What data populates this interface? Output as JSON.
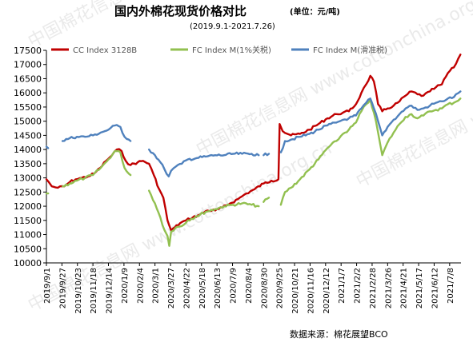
{
  "chart_data": {
    "type": "line",
    "title": "国内外棉花现货价格对比",
    "unit": "(单位：元/吨)",
    "subtitle": "(2019.9.1-2021.7.26)",
    "source": "数据来源：棉花展望BCO",
    "watermark": "中国棉花信息网 www.cottonchina.org.cn",
    "ylim": [
      10000,
      17500
    ],
    "yticks": [
      10000,
      10500,
      11000,
      11500,
      12000,
      12500,
      13000,
      13500,
      14000,
      14500,
      15000,
      15500,
      16000,
      16500,
      17000,
      17500
    ],
    "x_ticks": [
      "2019/9/1",
      "2019/9/27",
      "2019/10/23",
      "2019/11/18",
      "2019/12/14",
      "2020/1/9",
      "2020/2/4",
      "2020/3/1",
      "2020/3/27",
      "2020/4/22",
      "2020/5/18",
      "2020/6/13",
      "2020/7/9",
      "2020/8/4",
      "2020/8/30",
      "2020/9/25",
      "2020/10/21",
      "2020/11/16",
      "2020/12/12",
      "2021/1/7",
      "2021/2/2",
      "2021/2/28",
      "2021/3/26",
      "2021/4/21",
      "2021/5/17",
      "2021/6/12",
      "2021/7/8"
    ],
    "grid": false,
    "legend_position": "top",
    "series": [
      {
        "name": "CC Index 3128B",
        "color": "#c00000",
        "points": [
          [
            "2019/9/1",
            12950
          ],
          [
            "2019/9/5",
            12850
          ],
          [
            "2019/9/10",
            12700
          ],
          [
            "2019/9/20",
            12650
          ],
          [
            "2019/10/1",
            12700
          ],
          [
            "2019/10/10",
            12850
          ],
          [
            "2019/10/20",
            12950
          ],
          [
            "2019/10/30",
            13000
          ],
          [
            "2019/11/10",
            13050
          ],
          [
            "2019/11/20",
            13150
          ],
          [
            "2019/11/30",
            13350
          ],
          [
            "2019/12/10",
            13600
          ],
          [
            "2019/12/20",
            13800
          ],
          [
            "2019/12/28",
            14000
          ],
          [
            "2020/1/5",
            13950
          ],
          [
            "2020/1/12",
            13600
          ],
          [
            "2020/1/20",
            13450
          ],
          [
            "2020/2/1",
            13550
          ],
          [
            "2020/2/10",
            13600
          ],
          [
            "2020/2/20",
            13500
          ],
          [
            "2020/2/28",
            13100
          ],
          [
            "2020/3/8",
            12600
          ],
          [
            "2020/3/15",
            12300
          ],
          [
            "2020/3/22",
            11500
          ],
          [
            "2020/3/28",
            11150
          ],
          [
            "2020/4/3",
            11250
          ],
          [
            "2020/4/12",
            11400
          ],
          [
            "2020/4/22",
            11500
          ],
          [
            "2020/5/3",
            11600
          ],
          [
            "2020/5/15",
            11700
          ],
          [
            "2020/5/28",
            11850
          ],
          [
            "2020/6/10",
            11850
          ],
          [
            "2020/6/22",
            11950
          ],
          [
            "2020/7/5",
            12100
          ],
          [
            "2020/7/18",
            12250
          ],
          [
            "2020/8/1",
            12450
          ],
          [
            "2020/8/15",
            12600
          ],
          [
            "2020/8/30",
            12800
          ],
          [
            "2020/9/12",
            12900
          ],
          [
            "2020/9/24",
            12950
          ],
          [
            "2020/9/26",
            14900
          ],
          [
            "2020/10/1",
            14650
          ],
          [
            "2020/10/15",
            14500
          ],
          [
            "2020/10/30",
            14550
          ],
          [
            "2020/11/15",
            14700
          ],
          [
            "2020/11/30",
            14900
          ],
          [
            "2020/12/15",
            15100
          ],
          [
            "2020/12/30",
            15250
          ],
          [
            "2021/1/10",
            15300
          ],
          [
            "2021/1/20",
            15350
          ],
          [
            "2021/2/1",
            15600
          ],
          [
            "2021/2/10",
            16000
          ],
          [
            "2021/2/18",
            16300
          ],
          [
            "2021/2/25",
            16600
          ],
          [
            "2021/3/3",
            16400
          ],
          [
            "2021/3/10",
            15600
          ],
          [
            "2021/3/17",
            15350
          ],
          [
            "2021/3/26",
            15450
          ],
          [
            "2021/4/5",
            15550
          ],
          [
            "2021/4/15",
            15700
          ],
          [
            "2021/4/25",
            15900
          ],
          [
            "2021/5/5",
            16050
          ],
          [
            "2021/5/15",
            15950
          ],
          [
            "2021/5/25",
            15900
          ],
          [
            "2021/6/5",
            16050
          ],
          [
            "2021/6/15",
            16200
          ],
          [
            "2021/6/25",
            16300
          ],
          [
            "2021/7/5",
            16700
          ],
          [
            "2021/7/15",
            16900
          ],
          [
            "2021/7/26",
            17350
          ]
        ]
      },
      {
        "name": "FC Index M(1%关税)",
        "color": "#92c050",
        "points": [
          [
            "2019/9/1",
            12450
          ],
          [
            "2019/9/4",
            12450
          ],
          "gap",
          [
            "2019/9/28",
            12700
          ],
          [
            "2019/10/10",
            12800
          ],
          [
            "2019/10/22",
            12900
          ],
          [
            "2019/11/5",
            13000
          ],
          [
            "2019/11/18",
            13100
          ],
          [
            "2019/12/1",
            13350
          ],
          [
            "2019/12/14",
            13650
          ],
          [
            "2019/12/25",
            13950
          ],
          [
            "2020/1/3",
            13900
          ],
          [
            "2020/1/10",
            13350
          ],
          [
            "2020/1/17",
            13150
          ],
          [
            "2020/1/20",
            13100
          ],
          "gap",
          [
            "2020/2/20",
            12550
          ],
          [
            "2020/3/1",
            12100
          ],
          [
            "2020/3/10",
            11600
          ],
          [
            "2020/3/17",
            11150
          ],
          [
            "2020/3/22",
            10950
          ],
          [
            "2020/3/25",
            10600
          ],
          [
            "2020/3/28",
            11100
          ],
          [
            "2020/4/5",
            11250
          ],
          [
            "2020/4/15",
            11300
          ],
          [
            "2020/4/25",
            11500
          ],
          [
            "2020/5/10",
            11650
          ],
          [
            "2020/5/25",
            11800
          ],
          [
            "2020/6/10",
            11900
          ],
          [
            "2020/6/25",
            12000
          ],
          [
            "2020/7/10",
            12050
          ],
          [
            "2020/7/25",
            12100
          ],
          [
            "2020/8/10",
            12050
          ],
          [
            "2020/8/22",
            12000
          ],
          "gap",
          [
            "2020/8/30",
            12150
          ],
          [
            "2020/9/8",
            12300
          ],
          "gap",
          [
            "2020/9/28",
            12050
          ],
          [
            "2020/10/5",
            12500
          ],
          [
            "2020/10/15",
            12650
          ],
          [
            "2020/10/30",
            12950
          ],
          [
            "2020/11/15",
            13300
          ],
          [
            "2020/11/30",
            13650
          ],
          [
            "2020/12/15",
            14050
          ],
          [
            "2020/12/30",
            14300
          ],
          [
            "2021/1/10",
            14550
          ],
          [
            "2021/1/20",
            14700
          ],
          [
            "2021/2/1",
            14950
          ],
          [
            "2021/2/10",
            15350
          ],
          [
            "2021/2/18",
            15600
          ],
          [
            "2021/2/25",
            15750
          ],
          [
            "2021/3/3",
            15300
          ],
          [
            "2021/3/10",
            14600
          ],
          [
            "2021/3/17",
            13800
          ],
          [
            "2021/3/26",
            14250
          ],
          [
            "2021/4/5",
            14600
          ],
          [
            "2021/4/15",
            14900
          ],
          [
            "2021/4/25",
            15150
          ],
          [
            "2021/5/5",
            15250
          ],
          [
            "2021/5/15",
            15100
          ],
          [
            "2021/5/25",
            15200
          ],
          [
            "2021/6/5",
            15350
          ],
          [
            "2021/6/15",
            15400
          ],
          [
            "2021/6/25",
            15450
          ],
          [
            "2021/7/5",
            15600
          ],
          [
            "2021/7/15",
            15650
          ],
          [
            "2021/7/26",
            15800
          ]
        ]
      },
      {
        "name": "FC Index M(滑准税)",
        "color": "#4f81bd",
        "points": [
          [
            "2019/9/1",
            14100
          ],
          [
            "2019/9/4",
            14050
          ],
          "gap",
          [
            "2019/9/28",
            14300
          ],
          [
            "2019/10/10",
            14400
          ],
          [
            "2019/10/22",
            14450
          ],
          [
            "2019/11/5",
            14450
          ],
          [
            "2019/11/18",
            14500
          ],
          [
            "2019/12/1",
            14600
          ],
          [
            "2019/12/14",
            14700
          ],
          [
            "2019/12/25",
            14850
          ],
          [
            "2020/1/3",
            14800
          ],
          [
            "2020/1/10",
            14450
          ],
          [
            "2020/1/17",
            14350
          ],
          [
            "2020/1/20",
            14300
          ],
          "gap",
          [
            "2020/2/20",
            14000
          ],
          [
            "2020/3/1",
            13800
          ],
          [
            "2020/3/10",
            13550
          ],
          [
            "2020/3/17",
            13300
          ],
          [
            "2020/3/24",
            13050
          ],
          [
            "2020/3/28",
            13250
          ],
          [
            "2020/4/5",
            13400
          ],
          [
            "2020/4/15",
            13500
          ],
          [
            "2020/4/25",
            13650
          ],
          [
            "2020/5/10",
            13700
          ],
          [
            "2020/5/25",
            13750
          ],
          [
            "2020/6/10",
            13800
          ],
          [
            "2020/6/25",
            13800
          ],
          [
            "2020/7/10",
            13850
          ],
          [
            "2020/7/25",
            13850
          ],
          [
            "2020/8/10",
            13850
          ],
          [
            "2020/8/22",
            13800
          ],
          "gap",
          [
            "2020/8/30",
            13800
          ],
          [
            "2020/9/8",
            13850
          ],
          "gap",
          [
            "2020/9/28",
            13900
          ],
          [
            "2020/10/5",
            14300
          ],
          [
            "2020/10/15",
            14350
          ],
          [
            "2020/10/30",
            14450
          ],
          [
            "2020/11/15",
            14550
          ],
          [
            "2020/11/30",
            14700
          ],
          [
            "2020/12/15",
            14850
          ],
          [
            "2020/12/30",
            14950
          ],
          [
            "2021/1/10",
            15050
          ],
          [
            "2021/1/20",
            15100
          ],
          [
            "2021/2/1",
            15200
          ],
          [
            "2021/2/10",
            15450
          ],
          [
            "2021/2/18",
            15650
          ],
          [
            "2021/2/25",
            15800
          ],
          [
            "2021/3/3",
            15450
          ],
          [
            "2021/3/10",
            15000
          ],
          [
            "2021/3/17",
            14500
          ],
          [
            "2021/3/26",
            14800
          ],
          [
            "2021/4/5",
            15050
          ],
          [
            "2021/4/15",
            15250
          ],
          [
            "2021/4/25",
            15450
          ],
          [
            "2021/5/5",
            15550
          ],
          [
            "2021/5/15",
            15400
          ],
          [
            "2021/5/25",
            15450
          ],
          [
            "2021/6/5",
            15550
          ],
          [
            "2021/6/15",
            15650
          ],
          [
            "2021/6/25",
            15700
          ],
          [
            "2021/7/5",
            15800
          ],
          [
            "2021/7/15",
            15850
          ],
          [
            "2021/7/26",
            16050
          ]
        ]
      }
    ]
  }
}
